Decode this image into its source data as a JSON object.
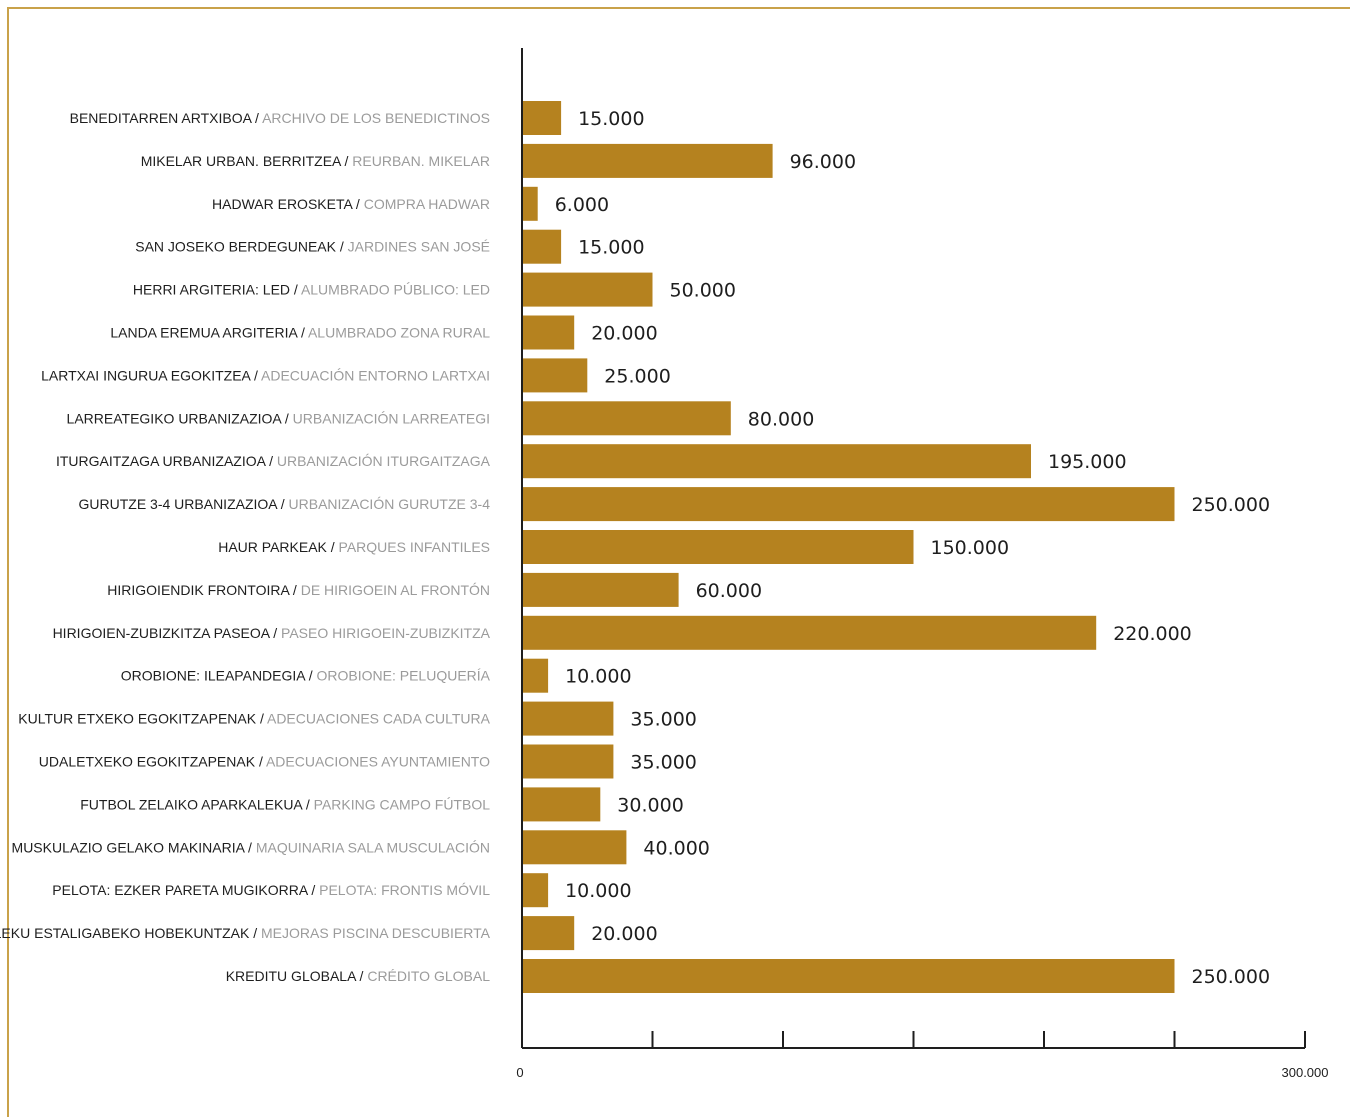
{
  "chart_data": {
    "type": "bar",
    "orientation": "horizontal",
    "bar_color": "#b5821f",
    "frame_color": "#c9a24a",
    "axis_color": "#1e1e1e",
    "secondary_label_color": "#9b9b9b",
    "xlim": [
      0,
      300000
    ],
    "xticks": [
      0,
      50000,
      100000,
      150000,
      200000,
      250000,
      300000
    ],
    "xtick_labels": [
      "0",
      "",
      "",
      "",
      "",
      "",
      "300.000"
    ],
    "categories": [
      {
        "eu": "BENEDITARREN ARTXIBOA",
        "es": "ARCHIVO DE LOS BENEDICTINOS"
      },
      {
        "eu": "MIKELAR URBAN. BERRITZEA",
        "es": "REURBAN. MIKELAR"
      },
      {
        "eu": "HADWAR EROSKETA",
        "es": "COMPRA HADWAR"
      },
      {
        "eu": "SAN JOSEKO BERDEGUNEAK",
        "es": "JARDINES SAN JOSÉ"
      },
      {
        "eu": "HERRI ARGITERIA: LED",
        "es": "ALUMBRADO PÚBLICO: LED"
      },
      {
        "eu": "LANDA EREMUA ARGITERIA",
        "es": "ALUMBRADO ZONA RURAL"
      },
      {
        "eu": "LARTXAI INGURUA EGOKITZEA",
        "es": "ADECUACIÓN ENTORNO LARTXAI"
      },
      {
        "eu": "LARREATEGIKO URBANIZAZIOA",
        "es": "URBANIZACIÓN LARREATEGI"
      },
      {
        "eu": "ITURGAITZAGA URBANIZAZIOA",
        "es": "URBANIZACIÓN ITURGAITZAGA"
      },
      {
        "eu": "GURUTZE 3-4 URBANIZAZIOA",
        "es": "URBANIZACIÓN GURUTZE 3-4"
      },
      {
        "eu": "HAUR PARKEAK",
        "es": "PARQUES INFANTILES"
      },
      {
        "eu": "HIRIGOIENDIK FRONTOIRA",
        "es": "DE HIRIGOEIN AL FRONTÓN"
      },
      {
        "eu": "HIRIGOIEN-ZUBIZKITZA PASEOA",
        "es": "PASEO HIRIGOEIN-ZUBIZKITZA"
      },
      {
        "eu": "OROBIONE: ILEAPANDEGIA",
        "es": "OROBIONE: PELUQUERÍA"
      },
      {
        "eu": "KULTUR ETXEKO EGOKITZAPENAK",
        "es": "ADECUACIONES CADA CULTURA"
      },
      {
        "eu": "UDALETXEKO EGOKITZAPENAK",
        "es": "ADECUACIONES AYUNTAMIENTO"
      },
      {
        "eu": "FUTBOL ZELAIKO APARKALEKUA",
        "es": "PARKING CAMPO FÚTBOL"
      },
      {
        "eu": "MUSKULAZIO GELAKO MAKINARIA",
        "es": "MAQUINARIA SALA MUSCULACIÓN"
      },
      {
        "eu": "PELOTA: EZKER PARETA MUGIKORRA",
        "es": "PELOTA: FRONTIS MÓVIL"
      },
      {
        "eu": "IGERILEKU ESTALIGABEKO HOBEKUNTZAK",
        "es": "MEJORAS PISCINA DESCUBIERTA"
      },
      {
        "eu": "KREDITU GLOBALA",
        "es": "CRÉDITO GLOBAL"
      }
    ],
    "values": [
      15000,
      96000,
      6000,
      15000,
      50000,
      20000,
      25000,
      80000,
      195000,
      250000,
      150000,
      60000,
      220000,
      10000,
      35000,
      35000,
      30000,
      40000,
      10000,
      20000,
      250000
    ],
    "value_labels": [
      "15.000",
      "96.000",
      "6.000",
      "15.000",
      "50.000",
      "20.000",
      "25.000",
      "80.000",
      "195.000",
      "250.000",
      "150.000",
      "60.000",
      "220.000",
      "10.000",
      "35.000",
      "35.000",
      "30.000",
      "40.000",
      "10.000",
      "20.000",
      "250.000"
    ]
  }
}
